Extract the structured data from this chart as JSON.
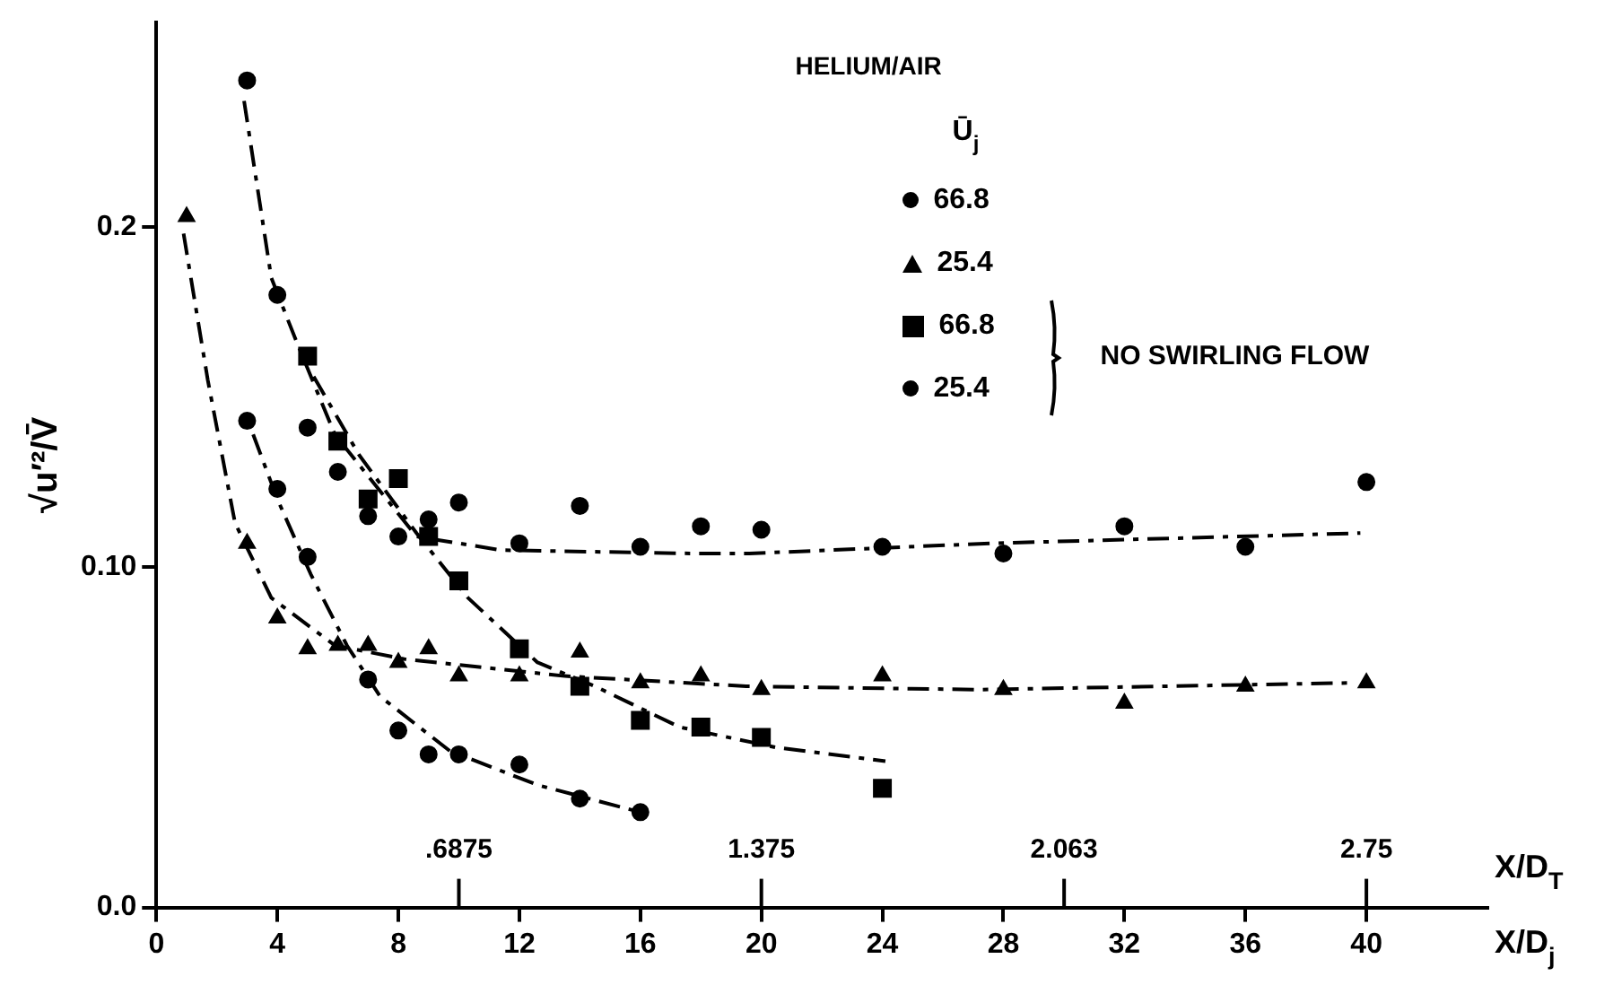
{
  "chart_data": {
    "type": "scatter",
    "xlabel": "X/D$_{j}$",
    "x2label": "X/D$_{T}$",
    "ylabel": "√u′²/V̄",
    "legend_title": "HELIUM/AIR",
    "annotations": [
      "Ū$_{j}$",
      "NO SWIRLING FLOW"
    ],
    "xlim": [
      0,
      44
    ],
    "xticks": [
      0,
      4,
      8,
      12,
      16,
      20,
      24,
      28,
      32,
      36,
      40
    ],
    "x2lim": [
      0,
      3.025
    ],
    "x2ticks": [
      {
        "value": 0.6875,
        "label": ".6875"
      },
      {
        "value": 1.375,
        "label": "1.375"
      },
      {
        "value": 2.063,
        "label": "2.063"
      },
      {
        "value": 2.75,
        "label": "2.75"
      }
    ],
    "ylim": [
      0,
      0.26
    ],
    "yticks": [
      {
        "value": 0,
        "label": "0.0"
      },
      {
        "value": 0.1,
        "label": "0.10"
      },
      {
        "value": 0.2,
        "label": "0.2"
      }
    ],
    "grid": false,
    "legend": "top right",
    "line_style": "dashed",
    "series": [
      {
        "name": "66.8",
        "color": "#000000",
        "marker": "circle",
        "x": [
          3,
          4,
          5,
          6,
          7,
          8,
          9,
          10,
          12,
          14,
          16,
          18,
          20,
          24,
          28,
          32,
          36,
          40
        ],
        "values": [
          0.243,
          0.18,
          0.141,
          0.128,
          0.115,
          0.109,
          0.114,
          0.119,
          0.107,
          0.118,
          0.106,
          0.112,
          0.111,
          0.106,
          0.104,
          0.112,
          0.106,
          0.125
        ]
      },
      {
        "name": "25.4",
        "color": "#000000",
        "marker": "triangle",
        "x": [
          1,
          3,
          4,
          5,
          6,
          7,
          8,
          9,
          10,
          12,
          14,
          16,
          18,
          20,
          24,
          28,
          32,
          36,
          40
        ],
        "values": [
          0.203,
          0.107,
          0.085,
          0.076,
          0.077,
          0.077,
          0.072,
          0.076,
          0.068,
          0.068,
          0.075,
          0.066,
          0.068,
          0.064,
          0.068,
          0.064,
          0.06,
          0.065,
          0.066
        ]
      },
      {
        "name": "66.8",
        "color": "#000000",
        "marker": "square",
        "x": [
          5,
          6,
          7,
          8,
          9,
          10,
          12,
          14,
          16,
          18,
          20,
          24
        ],
        "values": [
          0.162,
          0.137,
          0.12,
          0.126,
          0.109,
          0.096,
          0.076,
          0.065,
          0.055,
          0.053,
          0.05,
          0.035
        ]
      },
      {
        "name": "25.4",
        "color": "#000000",
        "marker": "circle",
        "x": [
          3,
          4,
          5,
          7,
          8,
          9,
          10,
          12,
          14,
          16
        ],
        "values": [
          0.143,
          0.123,
          0.103,
          0.067,
          0.052,
          0.045,
          0.045,
          0.042,
          0.032,
          0.028
        ]
      },
      {
        "type": "line",
        "color": "#000000",
        "marker": "none",
        "x": [
          2.9,
          3.8,
          4.6,
          5.9,
          8.6,
          11.4,
          17.8,
          19.6,
          27.6,
          39.8
        ],
        "values": [
          0.237,
          0.185,
          0.167,
          0.139,
          0.109,
          0.105,
          0.104,
          0.104,
          0.107,
          0.11
        ]
      },
      {
        "type": "line",
        "color": "#000000",
        "marker": "none",
        "x": [
          0.9,
          1.7,
          2.6,
          3.8,
          5.9,
          8.2,
          13.5,
          19.5,
          27.2,
          39.5
        ],
        "values": [
          0.198,
          0.155,
          0.113,
          0.091,
          0.077,
          0.073,
          0.068,
          0.065,
          0.064,
          0.066
        ]
      },
      {
        "type": "line",
        "color": "#000000",
        "marker": "none",
        "x": [
          5.2,
          6.7,
          8.6,
          10.3,
          12.6,
          14.5,
          17.3,
          20.5,
          24.1
        ],
        "values": [
          0.156,
          0.133,
          0.11,
          0.091,
          0.072,
          0.065,
          0.053,
          0.047,
          0.043
        ]
      },
      {
        "type": "line",
        "color": "#000000",
        "marker": "none",
        "x": [
          3.2,
          4,
          5.1,
          6.3,
          7.4,
          9.7,
          12.6,
          16
        ],
        "values": [
          0.139,
          0.12,
          0.098,
          0.077,
          0.062,
          0.046,
          0.036,
          0.028
        ]
      }
    ]
  }
}
